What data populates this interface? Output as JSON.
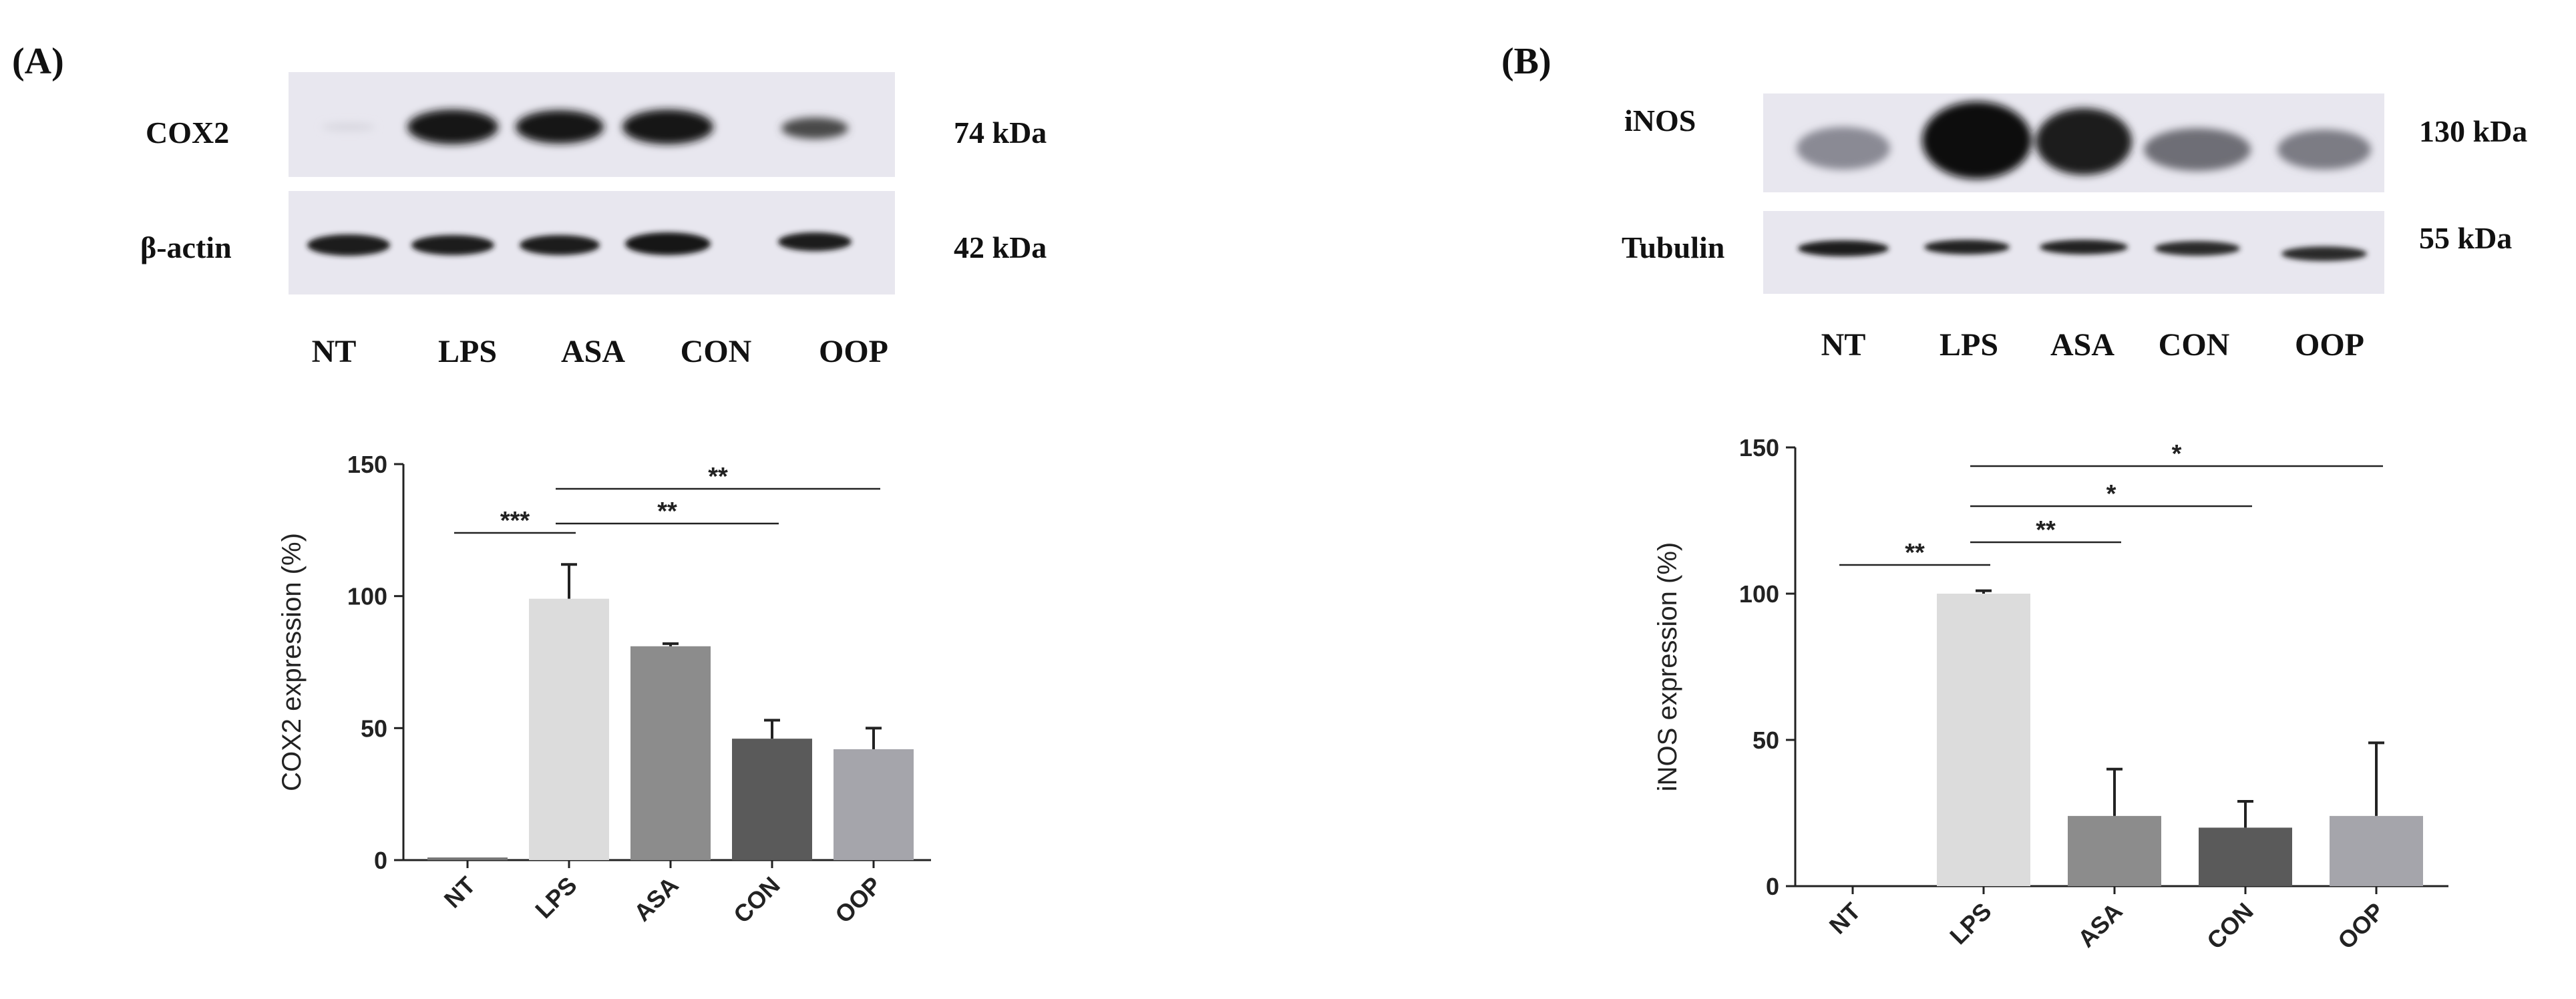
{
  "panels": [
    {
      "label": "(A)",
      "blot": {
        "rows": [
          {
            "protein": "COX2",
            "size": "74 kDa"
          },
          {
            "protein": "β-actin",
            "size": "42 kDa"
          }
        ],
        "lanes": [
          "NT",
          "LPS",
          "ASA",
          "CON",
          "OOP"
        ]
      }
    },
    {
      "label": "(B)",
      "blot": {
        "rows": [
          {
            "protein": "iNOS",
            "size": "130 kDa"
          },
          {
            "protein": "Tubulin",
            "size": "55 kDa"
          }
        ],
        "lanes": [
          "NT",
          "LPS",
          "ASA",
          "CON",
          "OOP"
        ]
      }
    }
  ],
  "chart_data": [
    {
      "type": "bar",
      "ylabel": "COX2 expression (%)",
      "categories": [
        "NT",
        "LPS",
        "ASA",
        "CON",
        "OOP"
      ],
      "values": [
        1,
        99,
        81,
        46,
        42
      ],
      "errors": [
        0,
        13,
        1,
        7,
        8
      ],
      "ylim": [
        0,
        150
      ],
      "yticks": [
        0,
        50,
        100,
        150
      ],
      "colors": [
        "#777777",
        "#dcdcdc",
        "#8c8c8c",
        "#5a5a5a",
        "#a5a5ab"
      ],
      "significance": [
        {
          "from": "NT",
          "to": "LPS",
          "label": "***"
        },
        {
          "from": "LPS",
          "to": "CON",
          "label": "**"
        },
        {
          "from": "LPS",
          "to": "OOP",
          "label": "**"
        }
      ]
    },
    {
      "type": "bar",
      "ylabel": "iNOS expression (%)",
      "categories": [
        "NT",
        "LPS",
        "ASA",
        "CON",
        "OOP"
      ],
      "values": [
        0,
        100,
        24,
        20,
        24
      ],
      "errors": [
        0,
        1,
        16,
        9,
        25
      ],
      "ylim": [
        0,
        150
      ],
      "yticks": [
        0,
        50,
        100,
        150
      ],
      "colors": [
        "#777777",
        "#dcdcdc",
        "#8c8c8c",
        "#5a5a5a",
        "#a5a5ab"
      ],
      "significance": [
        {
          "from": "NT",
          "to": "LPS",
          "label": "**"
        },
        {
          "from": "LPS",
          "to": "ASA",
          "label": "**"
        },
        {
          "from": "LPS",
          "to": "CON",
          "label": "*"
        },
        {
          "from": "LPS",
          "to": "OOP",
          "label": "*"
        }
      ]
    }
  ]
}
